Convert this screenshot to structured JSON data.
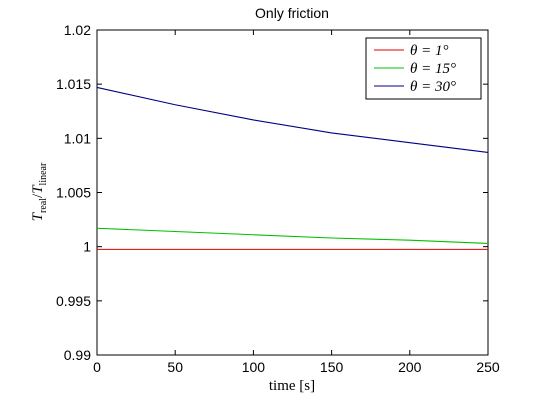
{
  "chart_data": {
    "type": "line",
    "title": "Only friction",
    "xlabel": "time [s]",
    "ylabel": "T_real/T_linear",
    "ylabel_parts": {
      "main": "T",
      "sub1": "real",
      "slash": "/",
      "sub2": "linear"
    },
    "xlim": [
      0,
      250
    ],
    "ylim": [
      0.99,
      1.02
    ],
    "xticks": [
      0,
      50,
      100,
      150,
      200,
      250
    ],
    "xtick_labels": [
      "0",
      "50",
      "100",
      "150",
      "200",
      "250"
    ],
    "yticks": [
      0.99,
      0.995,
      1.0,
      1.005,
      1.01,
      1.015,
      1.02
    ],
    "ytick_labels": [
      "0.99",
      "0.995",
      "1",
      "1.005",
      "1.01",
      "1.015",
      "1.02"
    ],
    "grid": false,
    "legend_position": "top-right",
    "series": [
      {
        "name": "θ = 1°",
        "color": "#e00000",
        "x": [
          0,
          50,
          100,
          150,
          200,
          250
        ],
        "y": [
          0.99975,
          0.99975,
          0.99975,
          0.99975,
          0.99975,
          0.99975
        ]
      },
      {
        "name": "θ = 15°",
        "color": "#00c000",
        "x": [
          0,
          50,
          100,
          150,
          200,
          250
        ],
        "y": [
          1.0017,
          1.0014,
          1.0011,
          1.0008,
          1.0006,
          1.0003
        ]
      },
      {
        "name": "θ = 30°",
        "color": "#000080",
        "x": [
          0,
          50,
          100,
          150,
          200,
          250
        ],
        "y": [
          1.0147,
          1.0131,
          1.0117,
          1.0105,
          1.0096,
          1.0087
        ]
      }
    ]
  }
}
